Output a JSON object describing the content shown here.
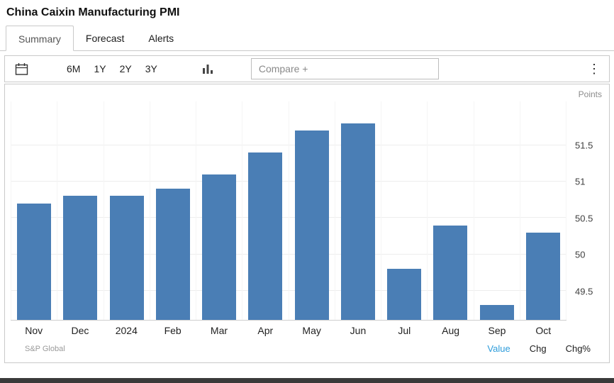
{
  "header": {
    "title": "China Caixin Manufacturing PMI"
  },
  "tabs": [
    {
      "label": "Summary",
      "active": true
    },
    {
      "label": "Forecast",
      "active": false
    },
    {
      "label": "Alerts",
      "active": false
    }
  ],
  "toolbar": {
    "ranges": [
      "6M",
      "1Y",
      "2Y",
      "3Y"
    ],
    "compare_placeholder": "Compare +",
    "icons": [
      "calendar-icon",
      "column-chart-icon",
      "kebab-menu-icon"
    ]
  },
  "chart_data": {
    "type": "bar",
    "title": "China Caixin Manufacturing PMI",
    "ylabel": "Points",
    "categories": [
      "Nov",
      "Dec",
      "2024",
      "Feb",
      "Mar",
      "Apr",
      "May",
      "Jun",
      "Jul",
      "Aug",
      "Sep",
      "Oct"
    ],
    "values": [
      50.7,
      50.8,
      50.8,
      50.9,
      51.1,
      51.4,
      51.7,
      51.8,
      49.8,
      50.4,
      49.3,
      50.3
    ],
    "yticks": [
      49.5,
      50,
      50.5,
      51,
      51.5
    ],
    "ylim": [
      49.1,
      52.1
    ],
    "bar_color": "#4a7eb5",
    "grid": true,
    "legend_position": "none"
  },
  "footer": {
    "source": "S&P Global",
    "links": [
      {
        "label": "Value",
        "active": true
      },
      {
        "label": "Chg",
        "active": false
      },
      {
        "label": "Chg%",
        "active": false
      }
    ]
  },
  "colors": {
    "bar": "#4a7eb5",
    "active_link": "#2d9cdb"
  }
}
